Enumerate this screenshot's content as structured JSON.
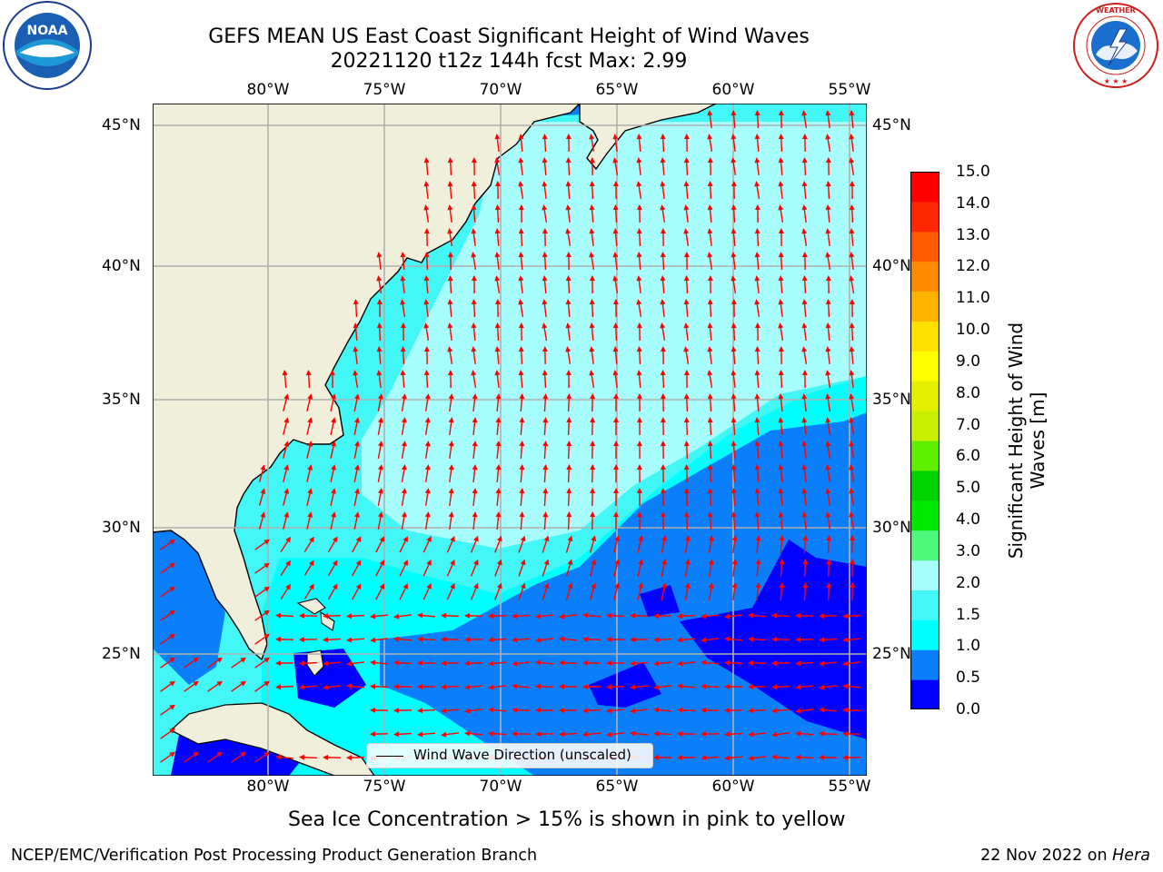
{
  "title": {
    "line1": "GEFS MEAN US East Coast Significant Height of Wind Waves",
    "line2": "20221120 t12z 144h fcst   Max: 2.99"
  },
  "map": {
    "lon_ticks": [
      "80°W",
      "75°W",
      "70°W",
      "65°W",
      "60°W",
      "55°W"
    ],
    "lat_ticks": [
      "45°N",
      "40°N",
      "35°N",
      "30°N",
      "25°N"
    ],
    "legend_label": "Wind Wave Direction (unscaled)",
    "ocean_bands_m": [
      {
        "range": "0.0-0.5",
        "color": "#0000ff"
      },
      {
        "range": "0.5-1.0",
        "color": "#0a7ff9"
      },
      {
        "range": "1.0-1.5",
        "color": "#00ffff"
      },
      {
        "range": "1.5-2.0",
        "color": "#44f7f7"
      },
      {
        "range": "2.0-3.0",
        "color": "#a8fdfd"
      }
    ],
    "land_color": "#efefdc",
    "arrow_color": "#ff0000"
  },
  "colorbar": {
    "label": "Significant Height of Wind Waves [m]",
    "label_line1": "Significant Height of Wind",
    "label_line2": "Waves [m]",
    "ticks": [
      "15.0",
      "14.0",
      "13.0",
      "12.0",
      "11.0",
      "10.0",
      "9.0",
      "8.0",
      "7.0",
      "6.0",
      "5.0",
      "4.0",
      "3.0",
      "2.0",
      "1.5",
      "1.0",
      "0.5",
      "0.0"
    ],
    "colors": [
      "#0000ff",
      "#0a7ff9",
      "#00ffff",
      "#44f7f7",
      "#a8fdfd",
      "#4ef97d",
      "#00e800",
      "#00d400",
      "#5ef000",
      "#c8f000",
      "#e4f000",
      "#ffff00",
      "#ffe000",
      "#ffb400",
      "#ff8c00",
      "#ff5a00",
      "#ff2800",
      "#ff0000"
    ]
  },
  "notes": {
    "sea_ice": "Sea Ice Concentration > 15% is shown in pink to yellow",
    "branch": "NCEP/EMC/Verification Post Processing Product Generation Branch",
    "date_prefix": "22 Nov 2022 on ",
    "machine": "Hera"
  },
  "logos": {
    "left": "NOAA",
    "left_ring_text": "NATIONAL OCEANIC AND ATMOSPHERIC ADMINISTRATION · U.S. DEPARTMENT OF COMMERCE",
    "right_ring_text": "NATIONAL WEATHER SERVICE"
  }
}
